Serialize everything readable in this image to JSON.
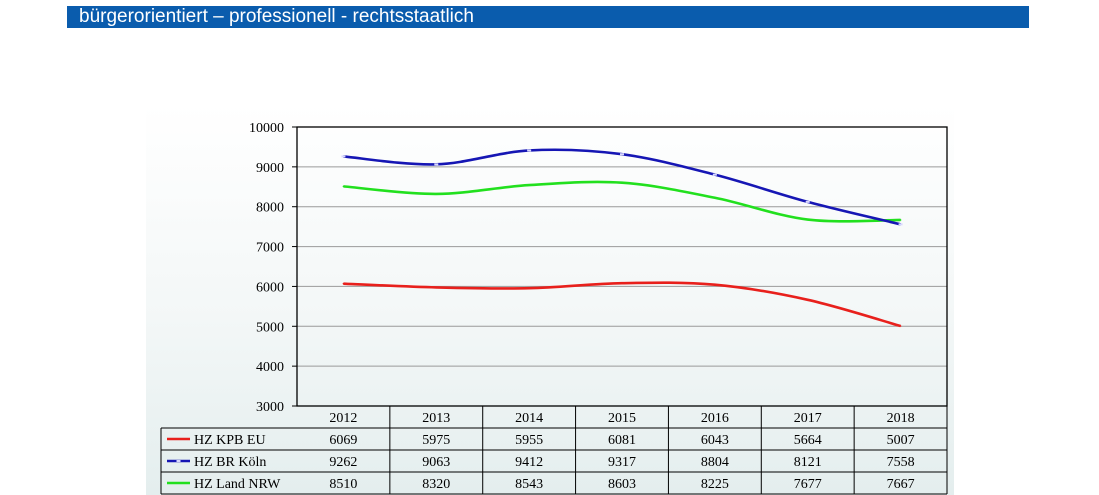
{
  "header": {
    "title": "bürgerorientiert – professionell - rechtsstaatlich"
  },
  "chart_data": {
    "type": "line",
    "title": "",
    "xlabel": "",
    "ylabel": "",
    "categories": [
      "2012",
      "2013",
      "2014",
      "2015",
      "2016",
      "2017",
      "2018"
    ],
    "ylim": [
      3000,
      10000
    ],
    "yticks": [
      3000,
      4000,
      5000,
      6000,
      7000,
      8000,
      9000,
      10000
    ],
    "grid": true,
    "legend": "data-table-left",
    "series": [
      {
        "name": "HZ KPB EU",
        "color": "#e8201c",
        "marker": false,
        "values": [
          6069,
          5975,
          5955,
          6081,
          6043,
          5664,
          5007
        ]
      },
      {
        "name": "HZ BR Köln",
        "color": "#1616b4",
        "marker": true,
        "values": [
          9262,
          9063,
          9412,
          9317,
          8804,
          8121,
          7558
        ]
      },
      {
        "name": "HZ Land NRW",
        "color": "#22e01e",
        "marker": false,
        "values": [
          8510,
          8320,
          8543,
          8603,
          8225,
          7677,
          7667
        ]
      }
    ]
  }
}
